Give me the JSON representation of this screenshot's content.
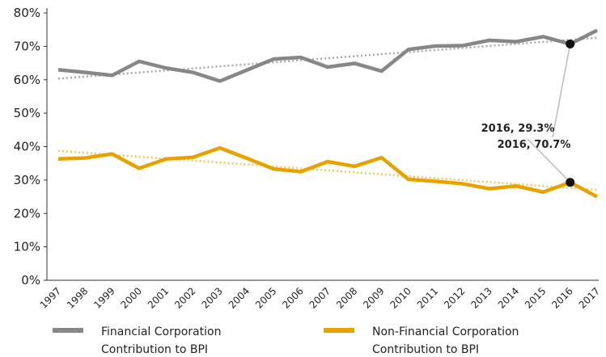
{
  "chart_data": {
    "type": "line",
    "categories": [
      "1997",
      "1998",
      "1999",
      "2000",
      "2001",
      "2002",
      "2003",
      "2004",
      "2005",
      "2006",
      "2007",
      "2008",
      "2009",
      "2010",
      "2011",
      "2012",
      "2013",
      "2014",
      "2015",
      "2016",
      "2017"
    ],
    "series": [
      {
        "name": "Financial Corporation Contribution to BPI",
        "color": "#878787",
        "trend_color": "#a8a8a8",
        "values": [
          63.0,
          62.2,
          61.3,
          65.5,
          63.5,
          62.2,
          59.6,
          62.9,
          66.2,
          66.7,
          63.8,
          64.9,
          62.6,
          69.1,
          70.1,
          70.2,
          71.8,
          71.4,
          72.9,
          70.7,
          74.8
        ]
      },
      {
        "name": "Non-Financial Corporation Contribution to BPI",
        "color": "#e8a200",
        "trend_color": "#f2c65a",
        "values": [
          36.3,
          36.6,
          37.8,
          33.5,
          36.3,
          36.8,
          39.6,
          36.5,
          33.3,
          32.5,
          35.5,
          34.1,
          36.7,
          30.2,
          29.6,
          28.9,
          27.4,
          28.2,
          26.4,
          29.3,
          25.0
        ]
      }
    ],
    "ylim": [
      0,
      80
    ],
    "yticks": [
      {
        "value": 0,
        "label": "0%"
      },
      {
        "value": 10,
        "label": "10%"
      },
      {
        "value": 20,
        "label": "20%"
      },
      {
        "value": 30,
        "label": "30%"
      },
      {
        "value": 40,
        "label": "40%"
      },
      {
        "value": 50,
        "label": "50%"
      },
      {
        "value": 60,
        "label": "60%"
      },
      {
        "value": 70,
        "label": "70%"
      },
      {
        "value": 80,
        "label": "80%"
      }
    ],
    "trendline": true,
    "annotations": [
      {
        "text": "2016, 70.7%",
        "series": 0,
        "index": 19
      },
      {
        "text": "2016, 29.3%",
        "series": 1,
        "index": 19
      }
    ]
  }
}
